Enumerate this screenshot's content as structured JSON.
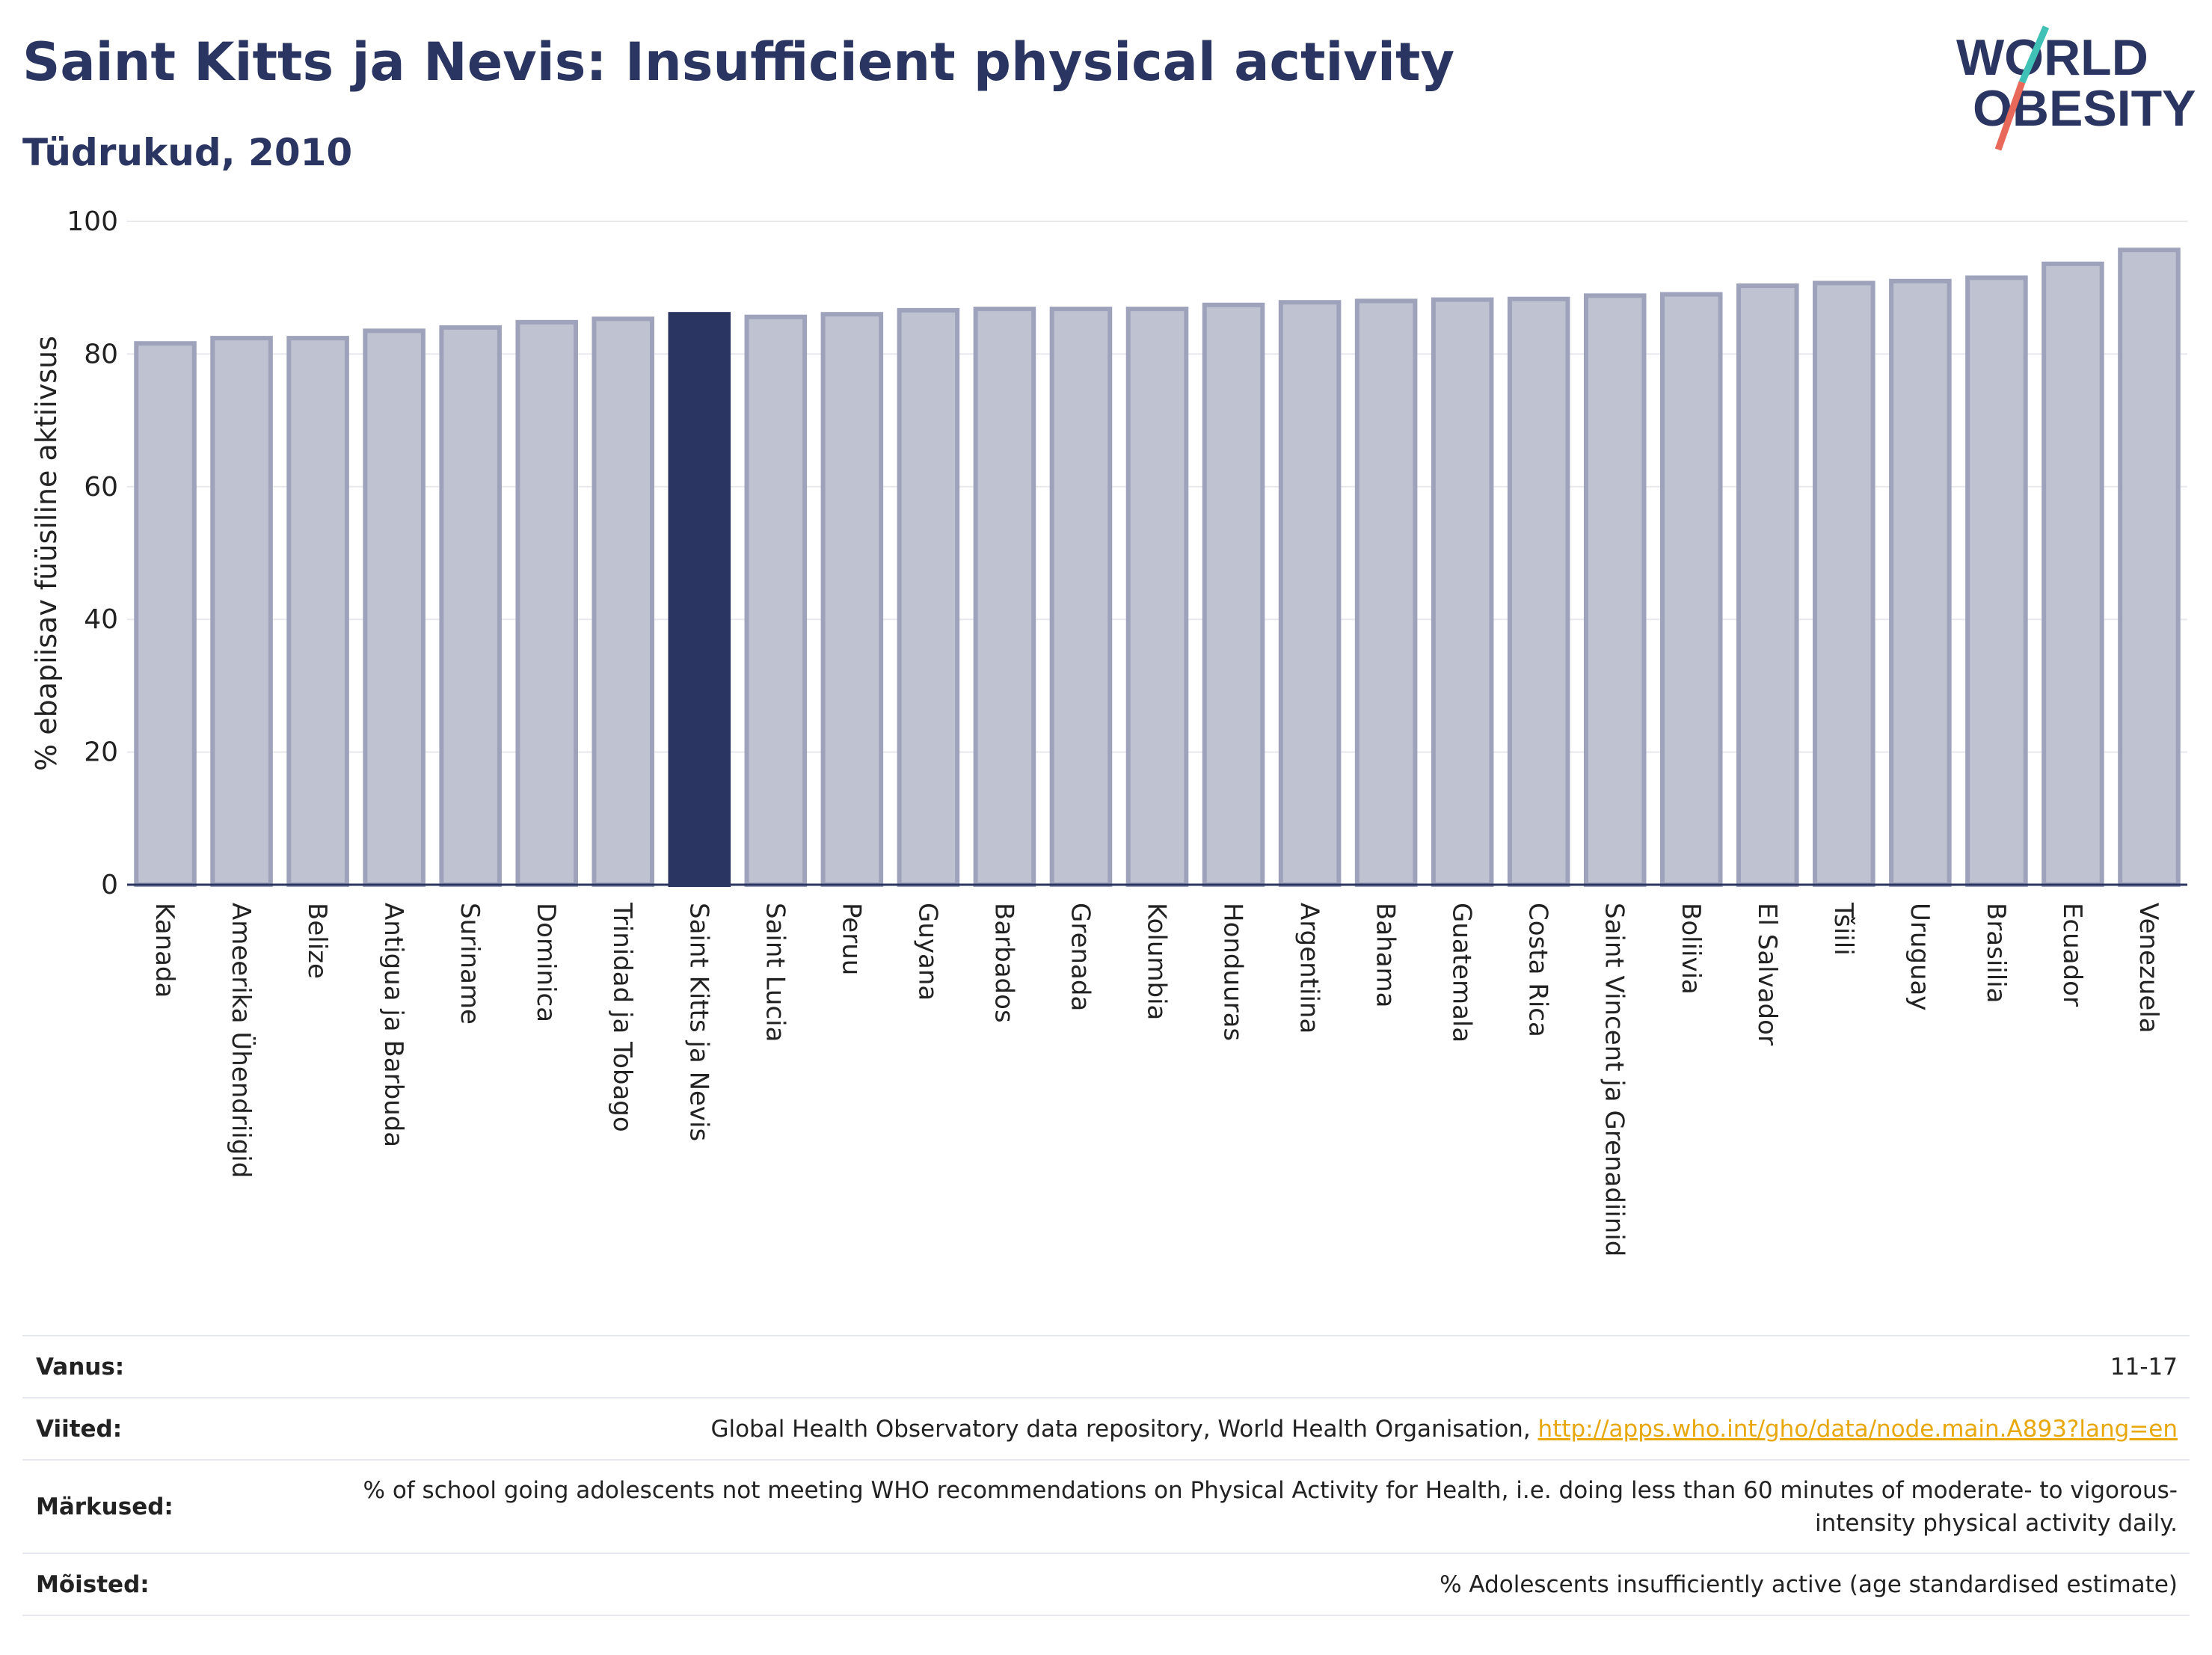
{
  "header": {
    "title": "Saint Kitts ja Nevis: Insufficient physical activity",
    "subtitle": "Tüdrukud, 2010",
    "logo_line1": "WORLD",
    "logo_line2": "OBESITY"
  },
  "colors": {
    "bar": "#bfc2d1",
    "bar_border": "#9ea3bb",
    "highlight": "#2b3561",
    "grid": "#e8e8ee",
    "axis": "#2b3561",
    "logo_teal": "#3fc1b6",
    "logo_red": "#e8685a",
    "link": "#e8a70b"
  },
  "chart_data": {
    "type": "bar",
    "ylabel": "% ebapiisav füüsiline aktiivsus",
    "ylim": [
      0,
      100
    ],
    "yticks": [
      0,
      20,
      40,
      60,
      80,
      100
    ],
    "grid": true,
    "highlight_category": "Saint Kitts ja Nevis",
    "categories": [
      "Kanada",
      "Ameerika Ühendriigid",
      "Belize",
      "Antigua ja Barbuda",
      "Suriname",
      "Dominica",
      "Trinidad ja Tobago",
      "Saint Kitts ja Nevis",
      "Saint Lucia",
      "Peruu",
      "Guyana",
      "Barbados",
      "Grenada",
      "Kolumbia",
      "Honduuras",
      "Argentiina",
      "Bahama",
      "Guatemala",
      "Costa Rica",
      "Saint Vincent ja Grenadiinid",
      "Boliivia",
      "El Salvador",
      "Tšiili",
      "Uruguay",
      "Brasiilia",
      "Ecuador",
      "Venezuela"
    ],
    "values": [
      81.6,
      82.4,
      82.4,
      83.5,
      84.0,
      84.8,
      85.3,
      86.0,
      85.6,
      86.0,
      86.6,
      86.8,
      86.8,
      86.8,
      87.4,
      87.8,
      88.0,
      88.2,
      88.3,
      88.8,
      89.0,
      90.3,
      90.7,
      91.0,
      91.5,
      93.6,
      95.7
    ]
  },
  "info": {
    "rows": [
      {
        "key": "Vanus:",
        "value": "11-17"
      },
      {
        "key": "Viited:",
        "value": "Global Health Observatory data repository, World Health Organisation, ",
        "link": "http://apps.who.int/gho/data/node.main.A893?lang=en"
      },
      {
        "key": "Märkused:",
        "value": "% of school going adolescents not meeting WHO recommendations on Physical Activity for Health, i.e. doing less than 60 minutes of moderate- to vigorous-intensity physical activity daily."
      },
      {
        "key": "Mõisted:",
        "value": "% Adolescents insufficiently active (age standardised estimate)"
      }
    ]
  }
}
